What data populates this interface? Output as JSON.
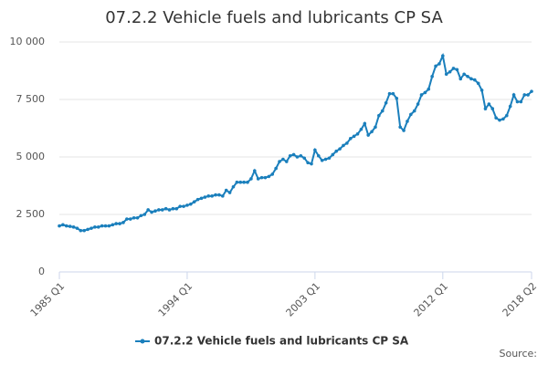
{
  "chart_data": {
    "type": "line",
    "title": "07.2.2 Vehicle fuels and lubricants CP SA",
    "categories": [
      "1985 Q1",
      null,
      null,
      null,
      null,
      null,
      null,
      null,
      null,
      null,
      null,
      null,
      null,
      null,
      null,
      null,
      null,
      null,
      null,
      null,
      null,
      null,
      null,
      null,
      null,
      null,
      null,
      null,
      null,
      null,
      null,
      null,
      null,
      null,
      null,
      null,
      "1994 Q1",
      null,
      null,
      null,
      null,
      null,
      null,
      null,
      null,
      null,
      null,
      null,
      null,
      null,
      null,
      null,
      null,
      null,
      null,
      null,
      null,
      null,
      null,
      null,
      null,
      null,
      null,
      null,
      null,
      null,
      null,
      null,
      null,
      null,
      null,
      null,
      "2003 Q1",
      null,
      null,
      null,
      null,
      null,
      null,
      null,
      null,
      null,
      null,
      null,
      null,
      null,
      null,
      null,
      null,
      null,
      null,
      null,
      null,
      null,
      null,
      null,
      null,
      null,
      null,
      null,
      null,
      null,
      null,
      null,
      null,
      null,
      null,
      null,
      "2012 Q1",
      null,
      null,
      null,
      null,
      null,
      null,
      null,
      null,
      null,
      null,
      null,
      null,
      null,
      null,
      null,
      null,
      null,
      null,
      null,
      null,
      null,
      null,
      null,
      null,
      "2018 Q2"
    ],
    "series": [
      {
        "name": "07.2.2 Vehicle fuels and lubricants CP SA",
        "color": "#1a7fbc",
        "values": [
          2000,
          2050,
          2000,
          1980,
          1950,
          1900,
          1800,
          1800,
          1850,
          1900,
          1950,
          1950,
          2000,
          2000,
          2000,
          2050,
          2100,
          2100,
          2150,
          2300,
          2300,
          2350,
          2350,
          2450,
          2500,
          2700,
          2600,
          2650,
          2700,
          2700,
          2750,
          2700,
          2750,
          2750,
          2850,
          2850,
          2900,
          2950,
          3050,
          3150,
          3200,
          3250,
          3300,
          3300,
          3350,
          3350,
          3300,
          3550,
          3450,
          3700,
          3900,
          3900,
          3900,
          3900,
          4050,
          4400,
          4050,
          4100,
          4100,
          4150,
          4250,
          4500,
          4800,
          4900,
          4800,
          5050,
          5100,
          5000,
          5050,
          4950,
          4750,
          4700,
          5300,
          5050,
          4850,
          4900,
          4950,
          5100,
          5250,
          5350,
          5500,
          5600,
          5800,
          5900,
          6000,
          6200,
          6450,
          5950,
          6100,
          6300,
          6800,
          7000,
          7350,
          7750,
          7750,
          7550,
          6300,
          6150,
          6550,
          6850,
          7000,
          7300,
          7700,
          7800,
          7950,
          8500,
          8950,
          9050,
          9400,
          8600,
          8700,
          8850,
          8800,
          8400,
          8600,
          8500,
          8400,
          8350,
          8200,
          7900,
          7100,
          7300,
          7100,
          6700,
          6600,
          6650,
          6800,
          7200,
          7700,
          7400,
          7400,
          7700,
          7700,
          7850
        ]
      }
    ],
    "ylim": [
      0,
      10000
    ],
    "yticks": [
      0,
      {
        "value": 2500,
        "label": "2 500"
      },
      {
        "value": 5000,
        "label": "5 000"
      },
      {
        "value": 7500,
        "label": "7 500"
      },
      {
        "value": 10000,
        "label": "10 000"
      }
    ],
    "grid": true,
    "legend": "bottom",
    "source": "Source:"
  }
}
